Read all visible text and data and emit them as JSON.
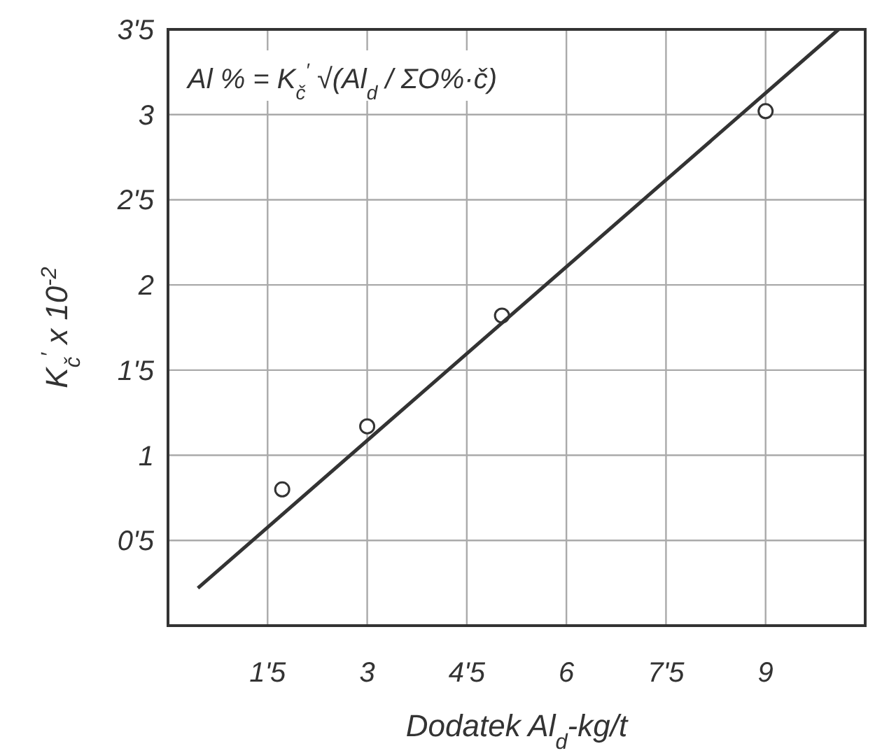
{
  "chart_data": {
    "type": "scatter",
    "xlabel": "Dodatek Al$_{d}$-kg/t",
    "ylabel": "K$_{č}$$^{′}$ x 10$^{-2}$",
    "annotations": [
      "Al % = K$_{č}$$^{′}$ √(Al$_{d}$ / ΣO%·č)"
    ],
    "series": [
      {
        "color": "#333333",
        "marker": "circle",
        "x": [
          1.72,
          3.0,
          5.03,
          9.0
        ],
        "values": [
          0.8,
          1.17,
          1.82,
          3.02
        ]
      },
      {
        "type": "line",
        "color": "#333333",
        "marker": "none",
        "x": [
          0.45,
          10.1
        ],
        "values": [
          0.22,
          3.5
        ]
      }
    ],
    "xlim": [
      0,
      10.5
    ],
    "ylim": [
      0,
      3.5
    ],
    "xticks": [
      {
        "value": 1.5,
        "label": "1'5"
      },
      3,
      {
        "value": 4.5,
        "label": "4'5"
      },
      6,
      {
        "value": 7.5,
        "label": "7'5"
      },
      9
    ],
    "yticks": [
      {
        "value": 0.5,
        "label": "0'5"
      },
      1,
      {
        "value": 1.5,
        "label": "1'5"
      },
      2,
      {
        "value": 2.5,
        "label": "2'5"
      },
      3,
      {
        "value": 3.5,
        "label": "3'5"
      }
    ],
    "grid": true
  }
}
